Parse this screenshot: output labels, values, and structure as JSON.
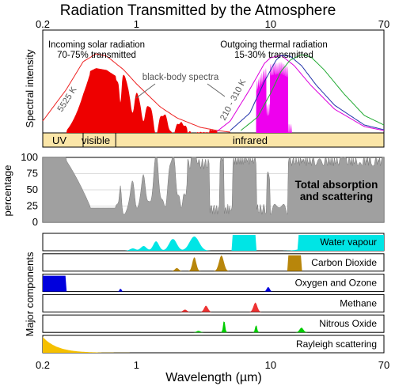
{
  "title": "Radiation Transmitted by the Atmosphere",
  "chart_data": {
    "type": "area",
    "x_scale": "log",
    "xlim": [
      0.2,
      70
    ],
    "x_ticks": [
      0.2,
      1,
      10,
      70
    ],
    "x_tick_labels": [
      "0.2",
      "1",
      "10",
      "70"
    ],
    "xlabel": "Wavelength (µm)",
    "panels": {
      "spectrum": {
        "ylabel": "Spectral intensity",
        "incoming_label_1": "Incoming solar radiation",
        "incoming_label_2": "70-75% transmitted",
        "outgoing_label_1": "Outgoing thermal radiation",
        "outgoing_label_2": "15-30% transmitted",
        "blackbody_label": "black-body spectra",
        "label_5525k": "5525 K",
        "label_210_310k": "210 - 310 K",
        "bands": [
          "UV",
          "visible",
          "infrared"
        ],
        "band_edges_um": [
          0.2,
          0.4,
          0.7,
          70
        ],
        "solar_curve": {
          "name": "5525 K",
          "color": "#ee2222",
          "x": [
            0.2,
            0.3,
            0.4,
            0.5,
            0.6,
            0.8,
            1.0,
            1.5,
            2.0,
            3.0,
            4.0,
            5.0
          ],
          "y": [
            0.15,
            0.55,
            0.9,
            1.0,
            0.97,
            0.8,
            0.62,
            0.33,
            0.19,
            0.07,
            0.03,
            0.01
          ]
        },
        "thermal_curves": [
          {
            "name": "310 K",
            "color": "#dd00dd",
            "x": [
              4,
              5,
              7,
              9,
              10,
              12,
              15,
              20,
              30,
              50,
              70
            ],
            "y": [
              0.02,
              0.15,
              0.55,
              0.88,
              0.95,
              0.98,
              0.85,
              0.6,
              0.3,
              0.08,
              0.03
            ]
          },
          {
            "name": "260 K",
            "color": "#2233aa",
            "x": [
              5,
              7,
              9,
              11,
              12,
              14,
              17,
              22,
              30,
              50,
              70
            ],
            "y": [
              0.03,
              0.25,
              0.65,
              0.92,
              0.98,
              0.97,
              0.85,
              0.6,
              0.35,
              0.1,
              0.04
            ]
          },
          {
            "name": "210 K",
            "color": "#22aa33",
            "x": [
              6,
              8,
              10,
              12,
              14,
              17,
              20,
              25,
              35,
              50,
              70
            ],
            "y": [
              0.03,
              0.2,
              0.5,
              0.78,
              0.92,
              0.99,
              0.96,
              0.8,
              0.5,
              0.22,
              0.1
            ]
          }
        ],
        "solar_transmitted_color": "#ee0000",
        "thermal_transmitted_color": "#ee00ee"
      },
      "absorption": {
        "ylabel": "percentage",
        "y_ticks": [
          0,
          25,
          50,
          75,
          100
        ],
        "y_tick_labels": [
          "0",
          "25",
          "50",
          "75",
          "100"
        ],
        "ylim": [
          0,
          100
        ],
        "label_1": "Total absorption",
        "label_2": "and scattering",
        "color": "#a0a0a0"
      },
      "components": {
        "ylabel": "Major components",
        "items": [
          {
            "name": "Water vapour",
            "color": "#00e5e5"
          },
          {
            "name": "Carbon Dioxide",
            "color": "#b8860b"
          },
          {
            "name": "Oxygen and Ozone",
            "color": "#0000dd"
          },
          {
            "name": "Methane",
            "color": "#ee3333"
          },
          {
            "name": "Nitrous Oxide",
            "color": "#00cc00"
          },
          {
            "name": "Rayleigh scattering",
            "color": "#f5c000"
          }
        ]
      }
    }
  }
}
